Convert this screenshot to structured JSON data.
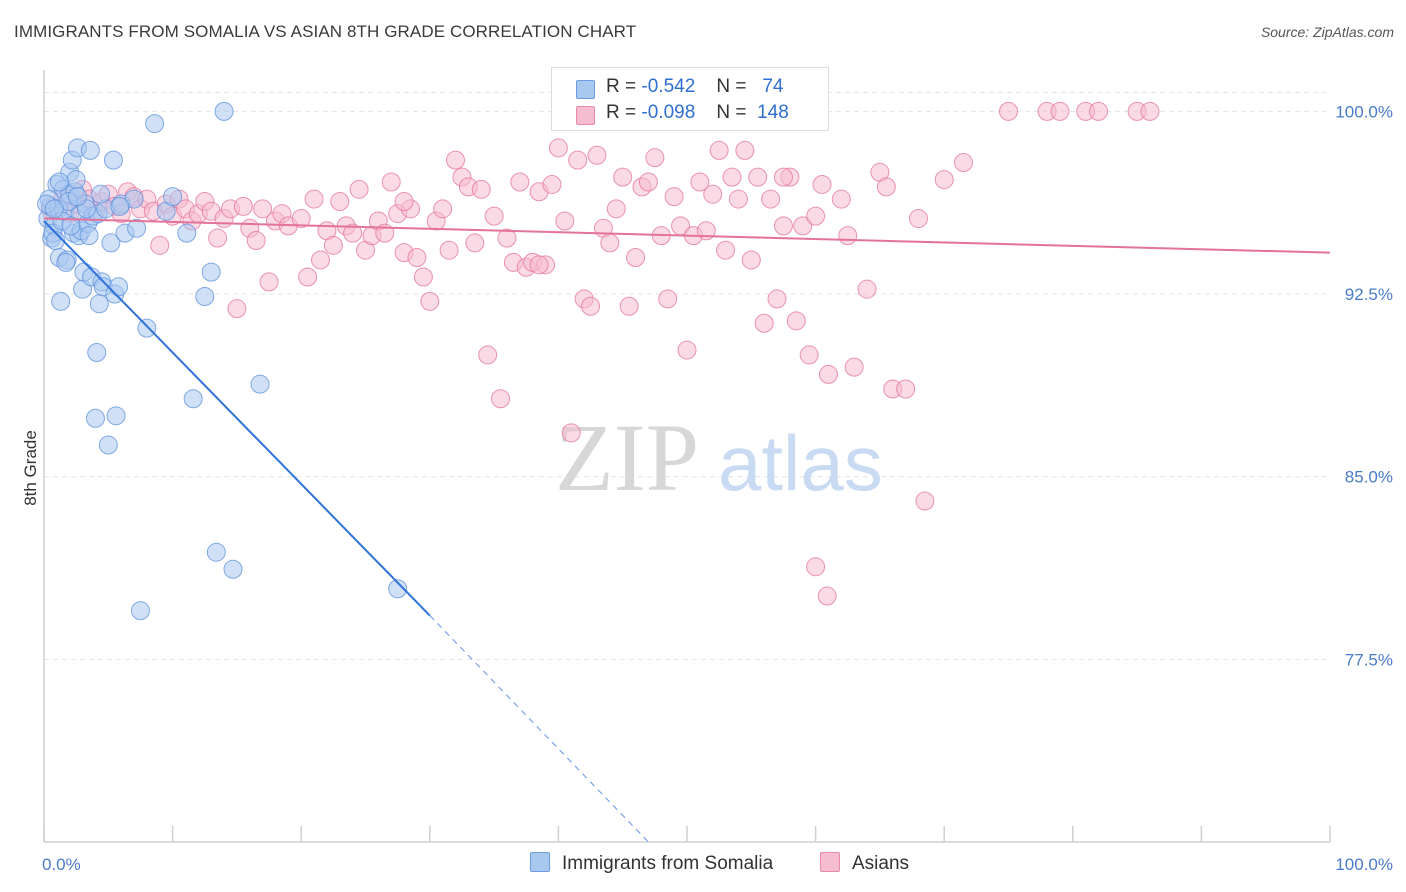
{
  "title": "IMMIGRANTS FROM SOMALIA VS ASIAN 8TH GRADE CORRELATION CHART",
  "source": "Source: ZipAtlas.com",
  "watermark": {
    "zip": "ZIP",
    "atlas": "atlas"
  },
  "legend_top": [
    {
      "r_label": "R =",
      "r_value": "-0.542",
      "n_label": "N =",
      "n_value": "74",
      "color": "#a9c8f0",
      "stroke": "#6c9be0"
    },
    {
      "r_label": "R =",
      "r_value": "-0.098",
      "n_label": "N =",
      "n_value": "148",
      "color": "#f6bcd0",
      "stroke": "#e88aac"
    }
  ],
  "legend_bottom": [
    {
      "label": "Immigrants from Somalia",
      "color": "#a9c8f0",
      "stroke": "#6c9be0"
    },
    {
      "label": "Asians",
      "color": "#f6bcd0",
      "stroke": "#e88aac"
    }
  ],
  "chart_data": {
    "type": "scatter",
    "title": "IMMIGRANTS FROM SOMALIA VS ASIAN 8TH GRADE CORRELATION CHART",
    "xlabel": "",
    "ylabel": "8th Grade",
    "xlim": [
      0,
      100
    ],
    "ylim": [
      70,
      101.7
    ],
    "x_tick_labels": [
      "0.0%",
      "100.0%"
    ],
    "y_ticks": [
      77.5,
      85.0,
      92.5,
      100.0
    ],
    "y_tick_labels": [
      "77.5%",
      "85.0%",
      "92.5%",
      "100.0%"
    ],
    "grid": true,
    "series": [
      {
        "name": "Immigrants from Somalia",
        "color": "#5b8fdc",
        "fill": "#a9c8f0",
        "trend": {
          "x": [
            0,
            30,
            47
          ],
          "y": [
            95.5,
            79.3,
            70.0
          ],
          "solid_until": 30
        },
        "points": [
          [
            0.3,
            95.6
          ],
          [
            0.5,
            96.1
          ],
          [
            0.6,
            94.8
          ],
          [
            0.8,
            95.3
          ],
          [
            1.0,
            97.0
          ],
          [
            1.2,
            94.0
          ],
          [
            1.3,
            92.2
          ],
          [
            1.5,
            96.8
          ],
          [
            1.6,
            95.9
          ],
          [
            1.8,
            93.9
          ],
          [
            2.0,
            97.5
          ],
          [
            2.0,
            96.6
          ],
          [
            2.2,
            98.0
          ],
          [
            2.3,
            95.0
          ],
          [
            2.4,
            96.7
          ],
          [
            2.5,
            97.2
          ],
          [
            2.6,
            98.5
          ],
          [
            2.7,
            94.9
          ],
          [
            2.8,
            95.8
          ],
          [
            2.9,
            95.1
          ],
          [
            3.0,
            92.7
          ],
          [
            3.1,
            93.4
          ],
          [
            3.2,
            96.2
          ],
          [
            3.4,
            95.4
          ],
          [
            3.6,
            98.4
          ],
          [
            3.7,
            93.2
          ],
          [
            3.8,
            95.7
          ],
          [
            4.0,
            87.4
          ],
          [
            4.1,
            90.1
          ],
          [
            4.2,
            95.8
          ],
          [
            4.3,
            92.1
          ],
          [
            4.5,
            93.0
          ],
          [
            4.6,
            92.8
          ],
          [
            4.8,
            96.0
          ],
          [
            5.0,
            86.3
          ],
          [
            5.2,
            94.6
          ],
          [
            5.4,
            98.0
          ],
          [
            5.5,
            92.5
          ],
          [
            5.6,
            87.5
          ],
          [
            5.8,
            92.8
          ],
          [
            6.0,
            96.2
          ],
          [
            6.3,
            95.0
          ],
          [
            7.0,
            96.4
          ],
          [
            7.2,
            95.2
          ],
          [
            7.5,
            79.5
          ],
          [
            8.0,
            91.1
          ],
          [
            8.6,
            99.5
          ],
          [
            9.5,
            95.9
          ],
          [
            10.0,
            96.5
          ],
          [
            11.1,
            95.0
          ],
          [
            11.6,
            88.2
          ],
          [
            12.5,
            92.4
          ],
          [
            13.0,
            93.4
          ],
          [
            13.4,
            81.9
          ],
          [
            14.0,
            100.0
          ],
          [
            14.7,
            81.2
          ],
          [
            16.8,
            88.8
          ],
          [
            27.5,
            80.4
          ],
          [
            0.4,
            96.4
          ],
          [
            0.7,
            95.0
          ],
          [
            1.1,
            96.0
          ],
          [
            1.4,
            95.5
          ],
          [
            1.7,
            93.8
          ],
          [
            1.9,
            96.3
          ],
          [
            2.1,
            95.3
          ],
          [
            3.3,
            96.0
          ],
          [
            3.5,
            94.9
          ],
          [
            4.4,
            96.6
          ],
          [
            0.9,
            94.7
          ],
          [
            2.6,
            96.5
          ],
          [
            1.2,
            97.1
          ],
          [
            5.9,
            96.1
          ],
          [
            0.2,
            96.2
          ],
          [
            0.8,
            96.0
          ]
        ]
      },
      {
        "name": "Asians",
        "color": "#e3739a",
        "fill": "#f6bcd0",
        "trend": {
          "x": [
            0,
            100
          ],
          "y": [
            95.6,
            94.2
          ]
        },
        "points": [
          [
            0.5,
            96.0
          ],
          [
            1.5,
            96.5
          ],
          [
            2.0,
            95.8
          ],
          [
            2.5,
            96.2
          ],
          [
            3.0,
            96.8
          ],
          [
            3.5,
            96.4
          ],
          [
            4.0,
            95.9
          ],
          [
            4.5,
            96.3
          ],
          [
            5.0,
            96.6
          ],
          [
            5.5,
            96.1
          ],
          [
            6.0,
            95.8
          ],
          [
            6.5,
            96.7
          ],
          [
            7.0,
            96.5
          ],
          [
            7.5,
            96.0
          ],
          [
            8.0,
            96.4
          ],
          [
            8.5,
            95.9
          ],
          [
            9.0,
            94.5
          ],
          [
            9.5,
            96.2
          ],
          [
            10.0,
            95.7
          ],
          [
            10.5,
            96.4
          ],
          [
            11.0,
            96.0
          ],
          [
            11.5,
            95.5
          ],
          [
            12.0,
            95.8
          ],
          [
            12.5,
            96.3
          ],
          [
            13.0,
            95.9
          ],
          [
            13.5,
            94.8
          ],
          [
            14.0,
            95.6
          ],
          [
            14.5,
            96.0
          ],
          [
            15.0,
            91.9
          ],
          [
            15.5,
            96.1
          ],
          [
            16.0,
            95.2
          ],
          [
            16.5,
            94.7
          ],
          [
            17.0,
            96.0
          ],
          [
            17.5,
            93.0
          ],
          [
            18.0,
            95.5
          ],
          [
            18.5,
            95.8
          ],
          [
            19.0,
            95.3
          ],
          [
            20.0,
            95.6
          ],
          [
            20.5,
            93.2
          ],
          [
            21.0,
            96.4
          ],
          [
            21.5,
            93.9
          ],
          [
            22.0,
            95.1
          ],
          [
            22.5,
            94.5
          ],
          [
            23.0,
            96.3
          ],
          [
            23.5,
            95.3
          ],
          [
            24.0,
            95.0
          ],
          [
            24.5,
            96.8
          ],
          [
            25.0,
            94.3
          ],
          [
            25.5,
            94.9
          ],
          [
            26.0,
            95.5
          ],
          [
            26.5,
            95.0
          ],
          [
            27.0,
            97.1
          ],
          [
            27.5,
            95.8
          ],
          [
            28.0,
            94.2
          ],
          [
            28.5,
            96.0
          ],
          [
            29.0,
            94.0
          ],
          [
            29.5,
            93.2
          ],
          [
            30.0,
            92.2
          ],
          [
            30.5,
            95.5
          ],
          [
            31.0,
            96.0
          ],
          [
            31.5,
            94.3
          ],
          [
            32.0,
            98.0
          ],
          [
            32.5,
            97.3
          ],
          [
            33.0,
            96.9
          ],
          [
            33.5,
            94.6
          ],
          [
            34.0,
            96.8
          ],
          [
            34.5,
            90.0
          ],
          [
            35.0,
            95.7
          ],
          [
            35.5,
            88.2
          ],
          [
            36.0,
            94.8
          ],
          [
            36.5,
            93.8
          ],
          [
            37.0,
            97.1
          ],
          [
            37.5,
            93.6
          ],
          [
            38.0,
            93.8
          ],
          [
            38.5,
            96.7
          ],
          [
            39.0,
            93.7
          ],
          [
            39.5,
            97.0
          ],
          [
            40.0,
            98.5
          ],
          [
            40.5,
            95.5
          ],
          [
            41.0,
            86.8
          ],
          [
            41.5,
            98.0
          ],
          [
            42.0,
            92.3
          ],
          [
            42.5,
            92.0
          ],
          [
            43.0,
            98.2
          ],
          [
            43.5,
            95.2
          ],
          [
            44.0,
            94.6
          ],
          [
            44.5,
            96.0
          ],
          [
            45.0,
            97.3
          ],
          [
            45.5,
            92.0
          ],
          [
            46.0,
            94.0
          ],
          [
            46.5,
            96.9
          ],
          [
            47.0,
            97.1
          ],
          [
            47.5,
            98.1
          ],
          [
            48.0,
            94.9
          ],
          [
            48.5,
            92.3
          ],
          [
            49.0,
            96.5
          ],
          [
            49.5,
            95.3
          ],
          [
            50.0,
            90.2
          ],
          [
            50.5,
            94.9
          ],
          [
            51.0,
            97.1
          ],
          [
            51.5,
            95.1
          ],
          [
            52.0,
            96.6
          ],
          [
            52.5,
            98.4
          ],
          [
            53.0,
            94.3
          ],
          [
            53.5,
            97.3
          ],
          [
            54.0,
            96.4
          ],
          [
            54.5,
            98.4
          ],
          [
            55.0,
            93.9
          ],
          [
            55.5,
            97.3
          ],
          [
            56.0,
            91.3
          ],
          [
            56.5,
            96.4
          ],
          [
            57.0,
            92.3
          ],
          [
            57.5,
            95.3
          ],
          [
            58.0,
            97.3
          ],
          [
            58.5,
            91.4
          ],
          [
            59.0,
            95.3
          ],
          [
            59.5,
            90.0
          ],
          [
            60.0,
            95.7
          ],
          [
            60.5,
            97.0
          ],
          [
            61.0,
            89.2
          ],
          [
            62.0,
            96.4
          ],
          [
            62.5,
            94.9
          ],
          [
            63.0,
            89.5
          ],
          [
            64.0,
            92.7
          ],
          [
            65.0,
            97.5
          ],
          [
            65.5,
            96.9
          ],
          [
            66.0,
            88.6
          ],
          [
            67.0,
            88.6
          ],
          [
            68.0,
            95.6
          ],
          [
            68.5,
            84.0
          ],
          [
            70.0,
            97.2
          ],
          [
            71.5,
            97.9
          ],
          [
            75.0,
            100.0
          ],
          [
            78.0,
            100.0
          ],
          [
            79.0,
            100.0
          ],
          [
            81.0,
            100.0
          ],
          [
            82.0,
            100.0
          ],
          [
            85.0,
            100.0
          ],
          [
            86.0,
            100.0
          ],
          [
            60.0,
            81.3
          ],
          [
            60.9,
            80.1
          ],
          [
            57.5,
            97.3
          ],
          [
            28.0,
            96.3
          ],
          [
            38.5,
            93.7
          ]
        ]
      }
    ]
  }
}
